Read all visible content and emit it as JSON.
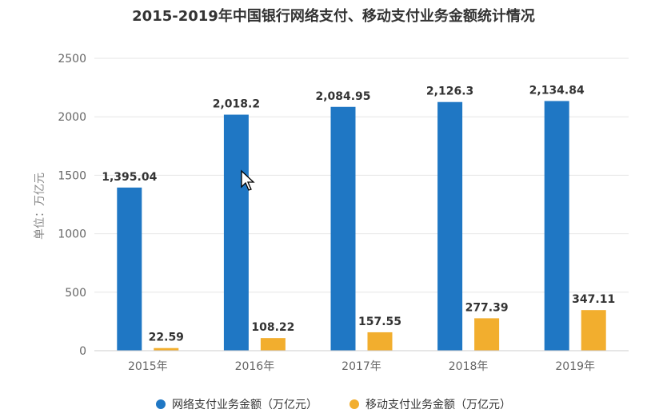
{
  "chart_data": {
    "type": "bar",
    "title": "2015-2019年中国银行网络支付、移动支付业务金额统计情况",
    "ylabel": "单位：万亿元",
    "xlabel": "",
    "categories": [
      "2015年",
      "2016年",
      "2017年",
      "2018年",
      "2019年"
    ],
    "ylim": [
      0,
      2500
    ],
    "yticks": [
      0,
      500,
      1000,
      1500,
      2000,
      2500
    ],
    "grid": true,
    "legend_position": "bottom",
    "series": [
      {
        "name": "网络支付业务金额（万亿元）",
        "color": "#1f77c4",
        "values": [
          1395.04,
          2018.2,
          2084.95,
          2126.3,
          2134.84
        ],
        "labels": [
          "1,395.04",
          "2,018.2",
          "2,084.95",
          "2,126.3",
          "2,134.84"
        ]
      },
      {
        "name": "移动支付业务金额（万亿元）",
        "color": "#f2ae2e",
        "values": [
          22.59,
          108.22,
          157.55,
          277.39,
          347.11
        ],
        "labels": [
          "22.59",
          "108.22",
          "157.55",
          "277.39",
          "347.11"
        ]
      }
    ]
  }
}
